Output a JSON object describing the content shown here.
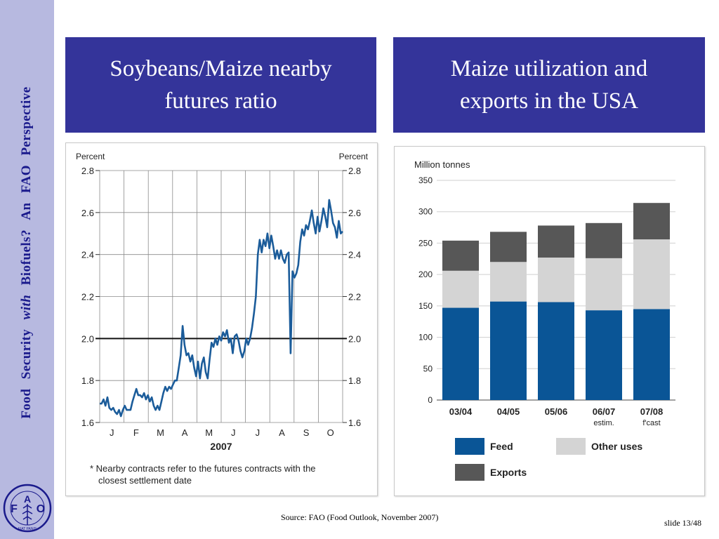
{
  "sidebar": {
    "parts": [
      "Food",
      "Security",
      "with",
      "Biofuels?",
      "An",
      "FAO",
      "Perspective"
    ],
    "logo_text": "FIAT PANIS",
    "logo_letters": [
      "F",
      "A",
      "O"
    ]
  },
  "titles": {
    "left": [
      "Soybeans/Maize nearby",
      "futures ratio"
    ],
    "right": [
      "Maize utilization and",
      "exports in the USA"
    ]
  },
  "footer": {
    "source": "Source: FAO (Food Outlook, November 2007)",
    "slide": "slide 13/48"
  },
  "colors": {
    "title_bg": "#34349a",
    "sidebar_bg": "#b7b9e0",
    "line": "#1b5c9a",
    "feed": "#0a5596",
    "other": "#d4d4d4",
    "exports": "#575757"
  },
  "chart_data": [
    {
      "type": "line",
      "ylabel_left": "Percent",
      "ylabel_right": "Percent",
      "xlabel": "2007",
      "ylim": [
        1.6,
        2.8
      ],
      "yticks": [
        "1.6",
        "1.8",
        "2.0",
        "2.2",
        "2.4",
        "2.6",
        "2.8"
      ],
      "month_ticks": [
        "J",
        "F",
        "M",
        "A",
        "M",
        "J",
        "J",
        "A",
        "S",
        "O"
      ],
      "reference_line": 2.0,
      "grid": true,
      "note": [
        "* Nearby contracts refer to the futures contracts with the",
        "closest settlement date"
      ],
      "series": [
        {
          "values": [
            [
              1,
              1.69
            ],
            [
              2,
              1.69
            ],
            [
              3,
              1.71
            ],
            [
              4,
              1.68
            ],
            [
              5,
              1.72
            ],
            [
              6,
              1.67
            ],
            [
              7,
              1.66
            ],
            [
              8,
              1.67
            ],
            [
              9,
              1.65
            ],
            [
              10,
              1.64
            ],
            [
              11,
              1.66
            ],
            [
              12,
              1.63
            ],
            [
              13,
              1.66
            ],
            [
              14,
              1.68
            ],
            [
              15,
              1.66
            ],
            [
              16,
              1.66
            ],
            [
              17,
              1.66
            ],
            [
              18,
              1.7
            ],
            [
              19,
              1.73
            ],
            [
              20,
              1.76
            ],
            [
              21,
              1.73
            ],
            [
              22,
              1.73
            ],
            [
              23,
              1.72
            ],
            [
              24,
              1.74
            ],
            [
              25,
              1.71
            ],
            [
              26,
              1.73
            ],
            [
              27,
              1.7
            ],
            [
              28,
              1.72
            ],
            [
              29,
              1.68
            ],
            [
              30,
              1.66
            ],
            [
              31,
              1.68
            ],
            [
              32,
              1.66
            ],
            [
              33,
              1.7
            ],
            [
              34,
              1.74
            ],
            [
              35,
              1.77
            ],
            [
              36,
              1.75
            ],
            [
              37,
              1.77
            ],
            [
              38,
              1.76
            ],
            [
              39,
              1.78
            ],
            [
              40,
              1.8
            ],
            [
              41,
              1.8
            ],
            [
              42,
              1.86
            ],
            [
              43,
              1.92
            ],
            [
              44,
              2.06
            ],
            [
              45,
              1.97
            ],
            [
              46,
              1.92
            ],
            [
              47,
              1.93
            ],
            [
              48,
              1.89
            ],
            [
              49,
              1.92
            ],
            [
              50,
              1.86
            ],
            [
              51,
              1.82
            ],
            [
              52,
              1.89
            ],
            [
              53,
              1.81
            ],
            [
              54,
              1.88
            ],
            [
              55,
              1.91
            ],
            [
              56,
              1.84
            ],
            [
              57,
              1.81
            ],
            [
              58,
              1.9
            ],
            [
              59,
              1.98
            ],
            [
              60,
              1.96
            ],
            [
              61,
              2.0
            ],
            [
              62,
              1.97
            ],
            [
              63,
              2.01
            ],
            [
              64,
              1.99
            ],
            [
              65,
              2.03
            ],
            [
              66,
              2.01
            ],
            [
              67,
              2.04
            ],
            [
              68,
              1.98
            ],
            [
              69,
              2.0
            ],
            [
              70,
              1.93
            ],
            [
              71,
              2.01
            ],
            [
              72,
              2.02
            ],
            [
              73,
              1.99
            ],
            [
              74,
              1.94
            ],
            [
              75,
              1.91
            ],
            [
              76,
              1.94
            ],
            [
              77,
              2.0
            ],
            [
              78,
              1.97
            ],
            [
              79,
              2.0
            ],
            [
              80,
              2.05
            ],
            [
              81,
              2.12
            ],
            [
              82,
              2.2
            ],
            [
              83,
              2.4
            ],
            [
              84,
              2.47
            ],
            [
              85,
              2.41
            ],
            [
              86,
              2.47
            ],
            [
              87,
              2.44
            ],
            [
              88,
              2.5
            ],
            [
              89,
              2.43
            ],
            [
              90,
              2.49
            ],
            [
              91,
              2.44
            ],
            [
              92,
              2.38
            ],
            [
              93,
              2.42
            ],
            [
              94,
              2.38
            ],
            [
              95,
              2.42
            ],
            [
              96,
              2.38
            ],
            [
              97,
              2.36
            ],
            [
              98,
              2.4
            ],
            [
              99,
              2.41
            ],
            [
              100,
              1.93
            ],
            [
              101,
              2.32
            ],
            [
              102,
              2.29
            ],
            [
              103,
              2.31
            ],
            [
              104,
              2.35
            ],
            [
              105,
              2.46
            ],
            [
              106,
              2.52
            ],
            [
              107,
              2.49
            ],
            [
              108,
              2.54
            ],
            [
              109,
              2.52
            ],
            [
              110,
              2.56
            ],
            [
              111,
              2.61
            ],
            [
              112,
              2.55
            ],
            [
              113,
              2.5
            ],
            [
              114,
              2.58
            ],
            [
              115,
              2.51
            ],
            [
              116,
              2.56
            ],
            [
              117,
              2.62
            ],
            [
              118,
              2.58
            ],
            [
              119,
              2.53
            ],
            [
              120,
              2.66
            ],
            [
              121,
              2.61
            ],
            [
              122,
              2.55
            ],
            [
              123,
              2.53
            ],
            [
              124,
              2.48
            ],
            [
              125,
              2.56
            ],
            [
              126,
              2.5
            ],
            [
              127,
              2.51
            ]
          ]
        }
      ]
    },
    {
      "type": "bar",
      "stacked": true,
      "ylabel": "Million tonnes",
      "ylim": [
        0,
        350
      ],
      "yticks": [
        "0",
        "50",
        "100",
        "150",
        "200",
        "250",
        "300",
        "350"
      ],
      "categories": [
        "03/04",
        "04/05",
        "05/06",
        "06/07",
        "07/08"
      ],
      "category_sublabels": [
        "",
        "",
        "",
        "estim.",
        "f'cast"
      ],
      "series": [
        {
          "name": "Feed",
          "values": [
            147,
            157,
            156,
            143,
            145
          ]
        },
        {
          "name": "Other uses",
          "values": [
            59,
            63,
            71,
            83,
            111
          ]
        },
        {
          "name": "Exports",
          "values": [
            48,
            48,
            51,
            56,
            58
          ]
        }
      ],
      "legend": [
        "Feed",
        "Other uses",
        "Exports"
      ],
      "legend_position": "bottom"
    }
  ]
}
